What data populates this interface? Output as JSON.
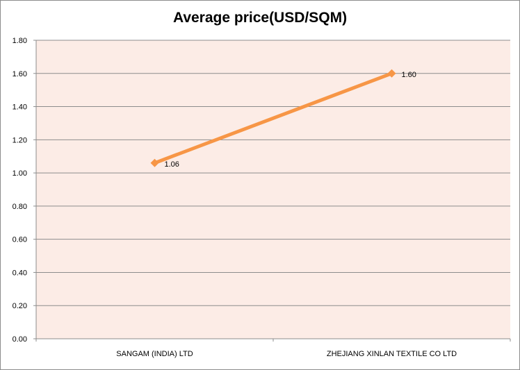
{
  "chart_data": {
    "type": "line",
    "title": "Average price(USD/SQM)",
    "xlabel": "",
    "ylabel": "",
    "categories": [
      "SANGAM (INDIA) LTD",
      "ZHEJIANG XINLAN TEXTILE CO LTD"
    ],
    "series": [
      {
        "values": [
          1.06,
          1.6
        ],
        "labels": [
          "1.06",
          "1.60"
        ]
      }
    ],
    "ylim": [
      0,
      1.8
    ],
    "yticks": [
      "0.00",
      "0.20",
      "0.40",
      "0.60",
      "0.80",
      "1.00",
      "1.20",
      "1.40",
      "1.60",
      "1.80"
    ],
    "grid": true,
    "legend": "none",
    "colors": {
      "line": "#f79646",
      "plot_background": "#fcece6",
      "gridline": "#8c8c8c"
    }
  }
}
